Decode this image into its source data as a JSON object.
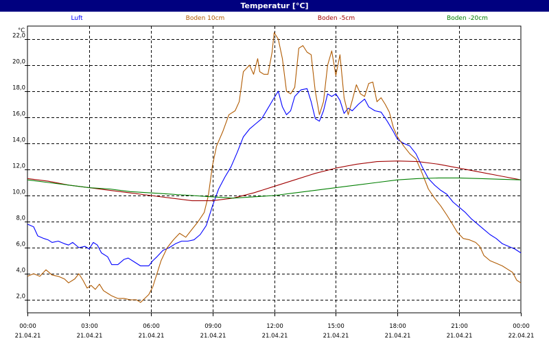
{
  "window": {
    "title": "Temperatur [°C]"
  },
  "colors": {
    "title_bar": "#00007f",
    "grid": "#000000"
  },
  "chart_data": {
    "type": "line",
    "title": "Temperatur [°C]",
    "ylabel": "°C",
    "ylim": [
      1,
      23
    ],
    "xlim": [
      0,
      24
    ],
    "grid": true,
    "legend": "top",
    "yticks": [
      2,
      4,
      6,
      8,
      10,
      12,
      14,
      16,
      18,
      20,
      22
    ],
    "ytick_labels": [
      "2,0",
      "4,0",
      "6,0",
      "8,0",
      "10,0",
      "12,0",
      "14,0",
      "16,0",
      "18,0",
      "20,0",
      "22,0"
    ],
    "xticks": [
      0,
      3,
      6,
      9,
      12,
      15,
      18,
      21,
      24
    ],
    "xtick_labels": [
      {
        "time": "00:00",
        "date": "21.04.21"
      },
      {
        "time": "03:00",
        "date": "21.04.21"
      },
      {
        "time": "06:00",
        "date": "21.04.21"
      },
      {
        "time": "09:00",
        "date": "21.04.21"
      },
      {
        "time": "12:00",
        "date": "21.04.21"
      },
      {
        "time": "15:00",
        "date": "21.04.21"
      },
      {
        "time": "18:00",
        "date": "21.04.21"
      },
      {
        "time": "21:00",
        "date": "21.04.21"
      },
      {
        "time": "00:00",
        "date": "22.04.21"
      }
    ],
    "series": [
      {
        "name": "Luft",
        "color": "#0000ff",
        "points": [
          [
            0,
            7.8
          ],
          [
            0.3,
            7.6
          ],
          [
            0.5,
            6.9
          ],
          [
            0.8,
            6.7
          ],
          [
            1.0,
            6.6
          ],
          [
            1.2,
            6.4
          ],
          [
            1.5,
            6.5
          ],
          [
            1.8,
            6.3
          ],
          [
            2.0,
            6.2
          ],
          [
            2.2,
            6.4
          ],
          [
            2.5,
            6.0
          ],
          [
            2.8,
            6.1
          ],
          [
            3.0,
            5.9
          ],
          [
            3.2,
            6.4
          ],
          [
            3.4,
            6.2
          ],
          [
            3.6,
            5.6
          ],
          [
            3.9,
            5.3
          ],
          [
            4.1,
            4.7
          ],
          [
            4.4,
            4.7
          ],
          [
            4.7,
            5.1
          ],
          [
            4.9,
            5.2
          ],
          [
            5.2,
            4.9
          ],
          [
            5.5,
            4.6
          ],
          [
            5.9,
            4.6
          ],
          [
            6.1,
            5.0
          ],
          [
            6.3,
            5.3
          ],
          [
            6.6,
            5.8
          ],
          [
            6.9,
            6.0
          ],
          [
            7.2,
            6.3
          ],
          [
            7.5,
            6.5
          ],
          [
            7.8,
            6.5
          ],
          [
            8.1,
            6.6
          ],
          [
            8.4,
            7.0
          ],
          [
            8.7,
            7.7
          ],
          [
            9.0,
            9.2
          ],
          [
            9.3,
            10.5
          ],
          [
            9.6,
            11.4
          ],
          [
            9.9,
            12.2
          ],
          [
            10.2,
            13.3
          ],
          [
            10.5,
            14.5
          ],
          [
            10.8,
            15.1
          ],
          [
            11.1,
            15.5
          ],
          [
            11.4,
            15.9
          ],
          [
            11.7,
            16.7
          ],
          [
            12.0,
            17.5
          ],
          [
            12.2,
            18.0
          ],
          [
            12.4,
            16.8
          ],
          [
            12.6,
            16.2
          ],
          [
            12.8,
            16.5
          ],
          [
            13.0,
            17.6
          ],
          [
            13.3,
            18.1
          ],
          [
            13.6,
            18.2
          ],
          [
            13.8,
            17.2
          ],
          [
            14.0,
            15.9
          ],
          [
            14.2,
            15.7
          ],
          [
            14.4,
            16.5
          ],
          [
            14.6,
            17.8
          ],
          [
            14.8,
            17.6
          ],
          [
            15.0,
            17.8
          ],
          [
            15.2,
            17.3
          ],
          [
            15.4,
            16.3
          ],
          [
            15.6,
            16.7
          ],
          [
            15.8,
            16.5
          ],
          [
            16.1,
            17.0
          ],
          [
            16.4,
            17.4
          ],
          [
            16.6,
            16.8
          ],
          [
            16.9,
            16.5
          ],
          [
            17.2,
            16.4
          ],
          [
            17.5,
            15.7
          ],
          [
            17.8,
            14.9
          ],
          [
            18.0,
            14.3
          ],
          [
            18.3,
            14.0
          ],
          [
            18.6,
            13.8
          ],
          [
            18.9,
            13.2
          ],
          [
            19.2,
            12.2
          ],
          [
            19.5,
            11.3
          ],
          [
            19.8,
            10.8
          ],
          [
            20.1,
            10.4
          ],
          [
            20.4,
            10.1
          ],
          [
            20.7,
            9.5
          ],
          [
            21.0,
            9.1
          ],
          [
            21.3,
            8.7
          ],
          [
            21.6,
            8.2
          ],
          [
            21.9,
            7.8
          ],
          [
            22.2,
            7.4
          ],
          [
            22.5,
            7.0
          ],
          [
            22.8,
            6.7
          ],
          [
            23.1,
            6.3
          ],
          [
            23.4,
            6.1
          ],
          [
            23.7,
            5.9
          ],
          [
            24.0,
            5.6
          ]
        ]
      },
      {
        "name": "Boden 10cm",
        "color": "#b05a00",
        "points": [
          [
            0,
            3.8
          ],
          [
            0.3,
            4.0
          ],
          [
            0.6,
            3.8
          ],
          [
            0.9,
            4.3
          ],
          [
            1.2,
            3.9
          ],
          [
            1.5,
            3.8
          ],
          [
            1.8,
            3.6
          ],
          [
            2.0,
            3.3
          ],
          [
            2.3,
            3.6
          ],
          [
            2.5,
            4.0
          ],
          [
            2.7,
            3.5
          ],
          [
            2.9,
            2.9
          ],
          [
            3.1,
            3.1
          ],
          [
            3.3,
            2.8
          ],
          [
            3.5,
            3.2
          ],
          [
            3.7,
            2.7
          ],
          [
            3.9,
            2.5
          ],
          [
            4.1,
            2.3
          ],
          [
            4.4,
            2.1
          ],
          [
            4.7,
            2.1
          ],
          [
            5.0,
            2.0
          ],
          [
            5.3,
            2.0
          ],
          [
            5.5,
            1.8
          ],
          [
            5.7,
            2.1
          ],
          [
            5.9,
            2.4
          ],
          [
            6.1,
            3.0
          ],
          [
            6.3,
            4.0
          ],
          [
            6.5,
            5.0
          ],
          [
            6.8,
            6.0
          ],
          [
            7.1,
            6.6
          ],
          [
            7.4,
            7.1
          ],
          [
            7.7,
            6.8
          ],
          [
            8.0,
            7.4
          ],
          [
            8.3,
            8.0
          ],
          [
            8.6,
            8.7
          ],
          [
            8.8,
            10.0
          ],
          [
            9.0,
            12.3
          ],
          [
            9.2,
            13.8
          ],
          [
            9.5,
            14.9
          ],
          [
            9.8,
            16.2
          ],
          [
            10.1,
            16.5
          ],
          [
            10.3,
            17.2
          ],
          [
            10.5,
            19.5
          ],
          [
            10.8,
            20.0
          ],
          [
            11.0,
            19.3
          ],
          [
            11.2,
            20.5
          ],
          [
            11.3,
            19.5
          ],
          [
            11.5,
            19.3
          ],
          [
            11.7,
            19.3
          ],
          [
            11.9,
            21.0
          ],
          [
            12.0,
            22.5
          ],
          [
            12.2,
            22.0
          ],
          [
            12.4,
            20.5
          ],
          [
            12.6,
            18.0
          ],
          [
            12.8,
            17.8
          ],
          [
            13.0,
            18.3
          ],
          [
            13.2,
            21.3
          ],
          [
            13.4,
            21.5
          ],
          [
            13.6,
            21.0
          ],
          [
            13.8,
            20.8
          ],
          [
            14.0,
            18.0
          ],
          [
            14.2,
            16.2
          ],
          [
            14.4,
            17.2
          ],
          [
            14.6,
            20.0
          ],
          [
            14.8,
            21.1
          ],
          [
            15.0,
            19.2
          ],
          [
            15.2,
            20.8
          ],
          [
            15.4,
            17.5
          ],
          [
            15.6,
            16.2
          ],
          [
            15.8,
            17.3
          ],
          [
            16.0,
            18.5
          ],
          [
            16.2,
            17.8
          ],
          [
            16.4,
            17.6
          ],
          [
            16.6,
            18.6
          ],
          [
            16.8,
            18.7
          ],
          [
            17.0,
            17.2
          ],
          [
            17.2,
            17.5
          ],
          [
            17.4,
            17.0
          ],
          [
            17.6,
            16.4
          ],
          [
            17.8,
            15.2
          ],
          [
            18.0,
            14.5
          ],
          [
            18.3,
            13.8
          ],
          [
            18.6,
            13.2
          ],
          [
            18.9,
            12.8
          ],
          [
            19.2,
            11.7
          ],
          [
            19.5,
            10.5
          ],
          [
            19.8,
            9.8
          ],
          [
            20.1,
            9.2
          ],
          [
            20.4,
            8.5
          ],
          [
            20.6,
            8.0
          ],
          [
            20.9,
            7.2
          ],
          [
            21.2,
            6.7
          ],
          [
            21.5,
            6.6
          ],
          [
            21.8,
            6.4
          ],
          [
            22.0,
            6.1
          ],
          [
            22.2,
            5.4
          ],
          [
            22.5,
            5.0
          ],
          [
            22.8,
            4.8
          ],
          [
            23.1,
            4.6
          ],
          [
            23.4,
            4.3
          ],
          [
            23.6,
            4.1
          ],
          [
            23.8,
            3.5
          ],
          [
            24.0,
            3.3
          ]
        ]
      },
      {
        "name": "Boden -5cm",
        "color": "#a00000",
        "points": [
          [
            0,
            11.3
          ],
          [
            1.0,
            11.1
          ],
          [
            2.0,
            10.8
          ],
          [
            3.0,
            10.6
          ],
          [
            4.0,
            10.4
          ],
          [
            5.0,
            10.2
          ],
          [
            6.0,
            10.0
          ],
          [
            7.0,
            9.8
          ],
          [
            8.0,
            9.6
          ],
          [
            9.0,
            9.6
          ],
          [
            10.0,
            9.8
          ],
          [
            11.0,
            10.2
          ],
          [
            12.0,
            10.7
          ],
          [
            13.0,
            11.2
          ],
          [
            14.0,
            11.7
          ],
          [
            15.0,
            12.1
          ],
          [
            16.0,
            12.4
          ],
          [
            17.0,
            12.6
          ],
          [
            18.0,
            12.65
          ],
          [
            19.0,
            12.6
          ],
          [
            20.0,
            12.4
          ],
          [
            21.0,
            12.1
          ],
          [
            22.0,
            11.8
          ],
          [
            23.0,
            11.5
          ],
          [
            24.0,
            11.2
          ]
        ]
      },
      {
        "name": "Boden -20cm",
        "color": "#007f00",
        "points": [
          [
            0,
            11.2
          ],
          [
            1.0,
            11.0
          ],
          [
            2.0,
            10.8
          ],
          [
            3.0,
            10.6
          ],
          [
            4.0,
            10.5
          ],
          [
            5.0,
            10.3
          ],
          [
            6.0,
            10.2
          ],
          [
            7.0,
            10.1
          ],
          [
            8.0,
            10.0
          ],
          [
            9.0,
            9.9
          ],
          [
            10.0,
            9.8
          ],
          [
            11.0,
            9.9
          ],
          [
            12.0,
            10.0
          ],
          [
            13.0,
            10.2
          ],
          [
            14.0,
            10.4
          ],
          [
            15.0,
            10.6
          ],
          [
            16.0,
            10.8
          ],
          [
            17.0,
            11.0
          ],
          [
            18.0,
            11.2
          ],
          [
            19.0,
            11.3
          ],
          [
            20.0,
            11.35
          ],
          [
            21.0,
            11.35
          ],
          [
            22.0,
            11.3
          ],
          [
            23.0,
            11.25
          ],
          [
            24.0,
            11.2
          ]
        ]
      }
    ]
  }
}
